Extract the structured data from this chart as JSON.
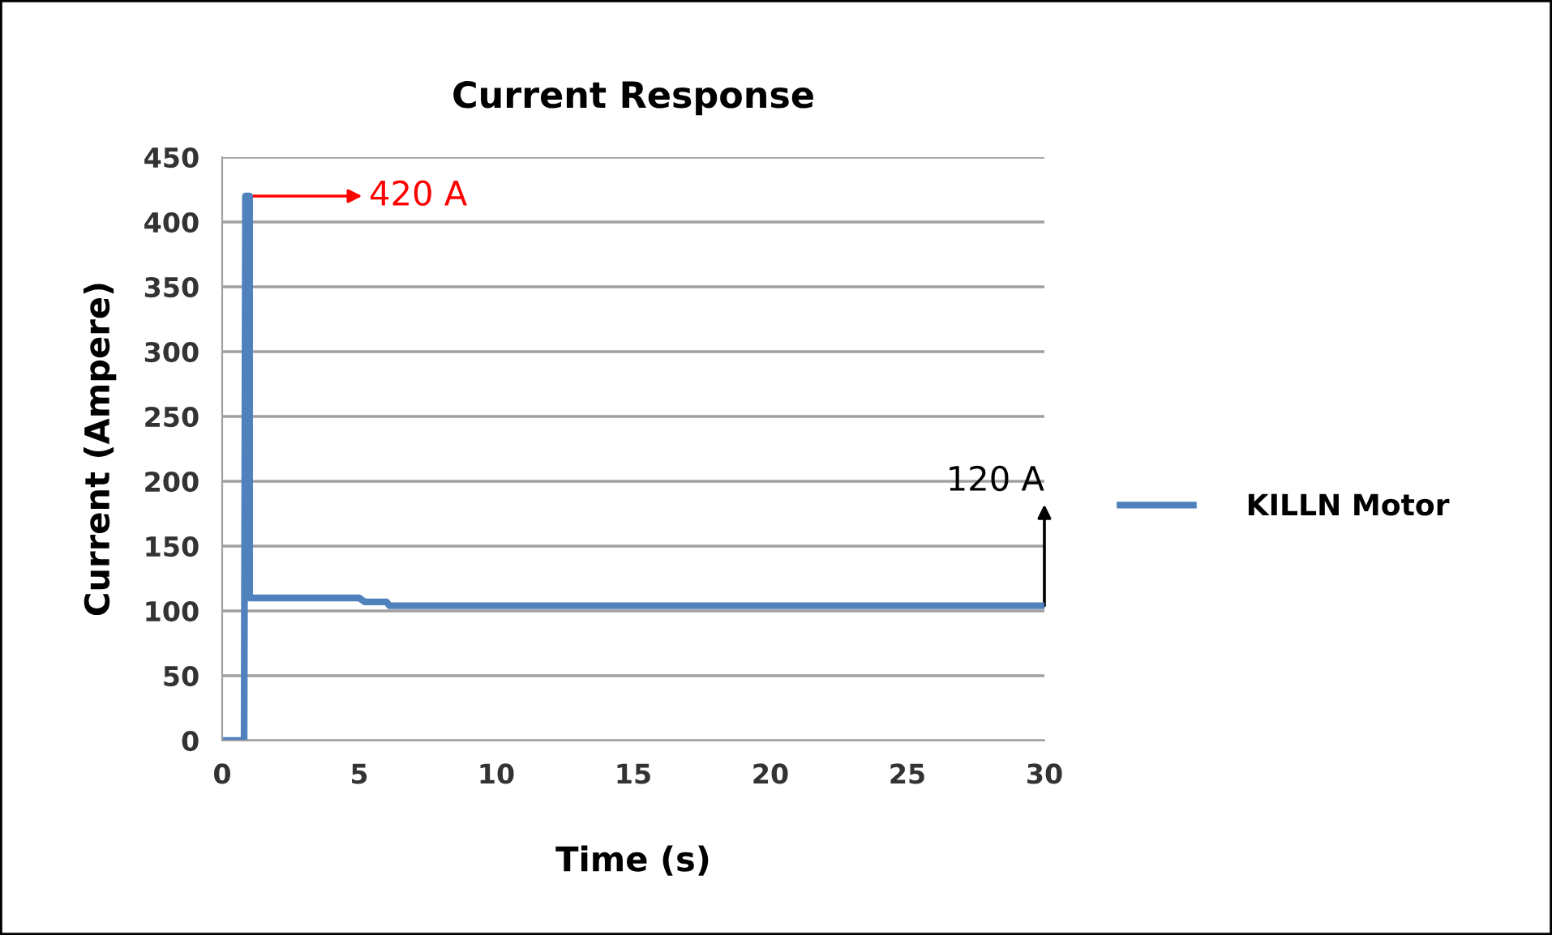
{
  "chart_data": {
    "type": "line",
    "title": "Current Response",
    "xlabel": "Time (s)",
    "ylabel": "Current (Ampere)",
    "xlim": [
      0,
      30
    ],
    "xticks": [
      0,
      5,
      10,
      15,
      20,
      25,
      30
    ],
    "ylim": [
      0,
      450
    ],
    "yticks": [
      0,
      50,
      100,
      150,
      200,
      250,
      300,
      350,
      400,
      450
    ],
    "grid": "y",
    "legend": "right",
    "series": [
      {
        "name": "KILLN Motor",
        "color": "#4f81bd",
        "x": [
          0,
          0.8,
          0.85,
          1.0,
          1.0,
          5,
          5.2,
          6,
          6.1,
          30
        ],
        "values": [
          0,
          0,
          420,
          420,
          110,
          110,
          107,
          107,
          104,
          104
        ]
      }
    ],
    "annotations": [
      {
        "text": "420 A",
        "x": 1,
        "y": 420
      },
      {
        "text": "120 A",
        "x": 30,
        "y": 104
      }
    ]
  }
}
